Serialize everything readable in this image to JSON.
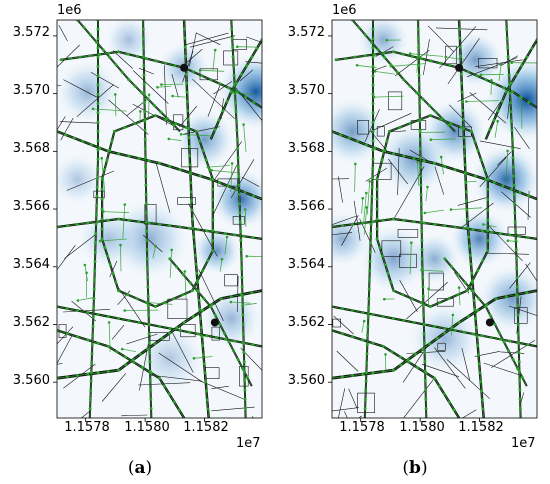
{
  "panels": [
    {
      "id": "a",
      "y_exponent": "1e6",
      "x_exponent": "1e7",
      "y_ticks": [
        "3.572",
        "3.570",
        "3.568",
        "3.566",
        "3.564",
        "3.562",
        "3.560"
      ],
      "x_ticks": [
        "1.1578",
        "1.1580",
        "1.1582"
      ],
      "label": "a"
    },
    {
      "id": "b",
      "y_exponent": "1e6",
      "x_exponent": "1e7",
      "y_ticks": [
        "3.572",
        "3.570",
        "3.568",
        "3.566",
        "3.564",
        "3.562",
        "3.560"
      ],
      "x_ticks": [
        "1.1578",
        "1.1580",
        "1.1582"
      ],
      "label": "b"
    }
  ],
  "colors": {
    "heat_low": "#ffffff",
    "heat_high": "#0b4f9c",
    "road": "#111111",
    "sensor": "#2e9e2e"
  }
}
